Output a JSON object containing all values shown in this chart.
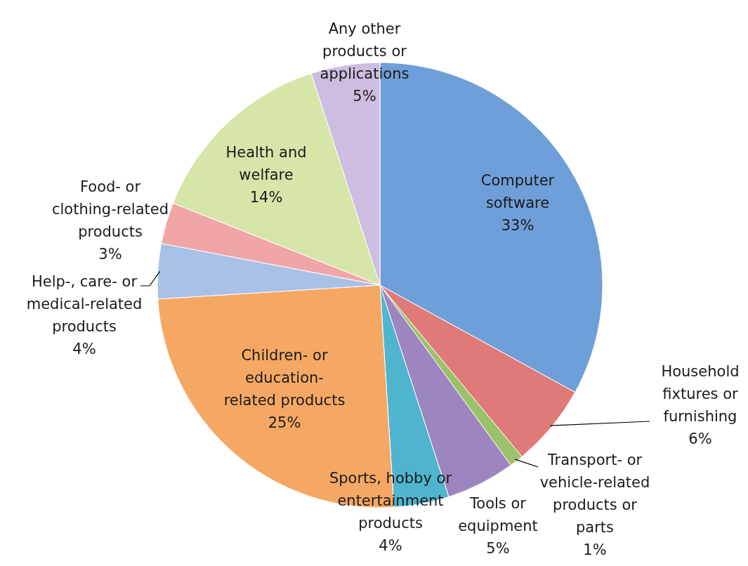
{
  "chart_data": {
    "type": "pie",
    "categories": [
      "Computer software",
      "Household fixtures or furnishing",
      "Transport- or vehicle-related products or parts",
      "Tools or equipment",
      "Sports, hobby or entertainment products",
      "Children- or education-related products",
      "Help-, care- or medical-related products",
      "Food- or clothing-related products",
      "Health and welfare",
      "Any other products or applications"
    ],
    "values": [
      33,
      6,
      1,
      5,
      4,
      25,
      4,
      3,
      14,
      5
    ],
    "value_labels": [
      "33%",
      "6%",
      "1%",
      "5%",
      "4%",
      "25%",
      "4%",
      "3%",
      "14%",
      "5%"
    ],
    "colors": [
      "#6f9fd8",
      "#e07a78",
      "#9bc26a",
      "#9d85c0",
      "#4fb5cf",
      "#f5a864",
      "#a7c2e6",
      "#f0a6a6",
      "#d5e6a8",
      "#cdbde0"
    ]
  }
}
